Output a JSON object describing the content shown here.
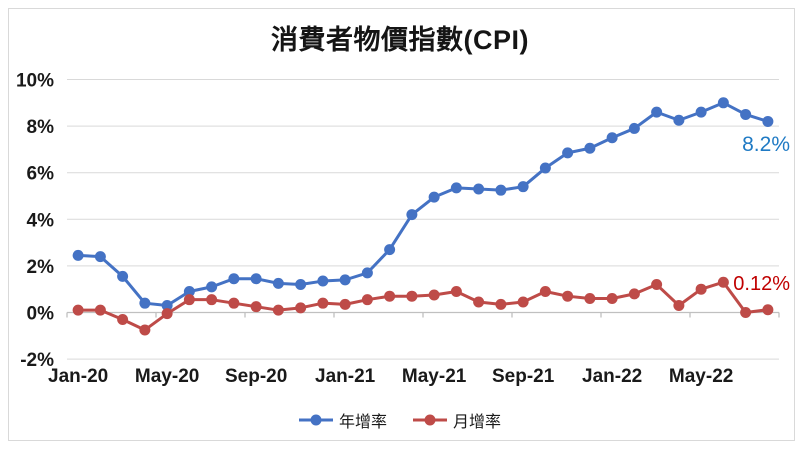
{
  "title": "消費者物價指數(CPI)",
  "legend": {
    "items": [
      {
        "label": "年增率",
        "color": "#4472C4"
      },
      {
        "label": "月增率",
        "color": "#BE4B48"
      }
    ]
  },
  "chart_data": {
    "type": "line",
    "title": "消費者物價指數(CPI)",
    "categories": [
      "Jan-20",
      "Feb-20",
      "Mar-20",
      "Apr-20",
      "May-20",
      "Jun-20",
      "Jul-20",
      "Aug-20",
      "Sep-20",
      "Oct-20",
      "Nov-20",
      "Dec-20",
      "Jan-21",
      "Feb-21",
      "Mar-21",
      "Apr-21",
      "May-21",
      "Jun-21",
      "Jul-21",
      "Aug-21",
      "Sep-21",
      "Oct-21",
      "Nov-21",
      "Dec-21",
      "Jan-22",
      "Feb-22",
      "Mar-22",
      "Apr-22",
      "May-22",
      "Jun-22",
      "Jul-22",
      "Aug-22"
    ],
    "x_tick_labels": [
      "Jan-20",
      "May-20",
      "Sep-20",
      "Jan-21",
      "May-21",
      "Sep-21",
      "Jan-22",
      "May-22"
    ],
    "x_tick_every": 4,
    "y_tick_labels": [
      "10%",
      "8%",
      "6%",
      "4%",
      "2%",
      "0%",
      "-2%"
    ],
    "y_tick_values": [
      10,
      8,
      6,
      4,
      2,
      0,
      -2
    ],
    "ylim": [
      -2,
      10
    ],
    "grid": true,
    "legend_position": "bottom",
    "series": [
      {
        "name": "年增率",
        "color": "#4472C4",
        "values": [
          2.45,
          2.4,
          1.55,
          0.4,
          0.3,
          0.9,
          1.1,
          1.45,
          1.45,
          1.25,
          1.2,
          1.35,
          1.4,
          1.7,
          2.7,
          4.2,
          4.95,
          5.35,
          5.3,
          5.25,
          5.4,
          6.2,
          6.85,
          7.05,
          7.5,
          7.9,
          8.6,
          8.25,
          8.6,
          9.0,
          8.5,
          8.2
        ]
      },
      {
        "name": "月增率",
        "color": "#BE4B48",
        "values": [
          0.1,
          0.1,
          -0.3,
          -0.75,
          -0.05,
          0.55,
          0.55,
          0.4,
          0.25,
          0.1,
          0.2,
          0.4,
          0.35,
          0.55,
          0.7,
          0.7,
          0.75,
          0.9,
          0.45,
          0.35,
          0.45,
          0.9,
          0.7,
          0.6,
          0.6,
          0.8,
          1.2,
          0.3,
          1.0,
          1.3,
          0.0,
          0.12
        ]
      }
    ],
    "annotations": [
      {
        "text": "8.2%",
        "series": "年增率",
        "color": "#1F7AC4"
      },
      {
        "text": "0.12%",
        "series": "月增率",
        "color": "#C00000"
      }
    ]
  }
}
